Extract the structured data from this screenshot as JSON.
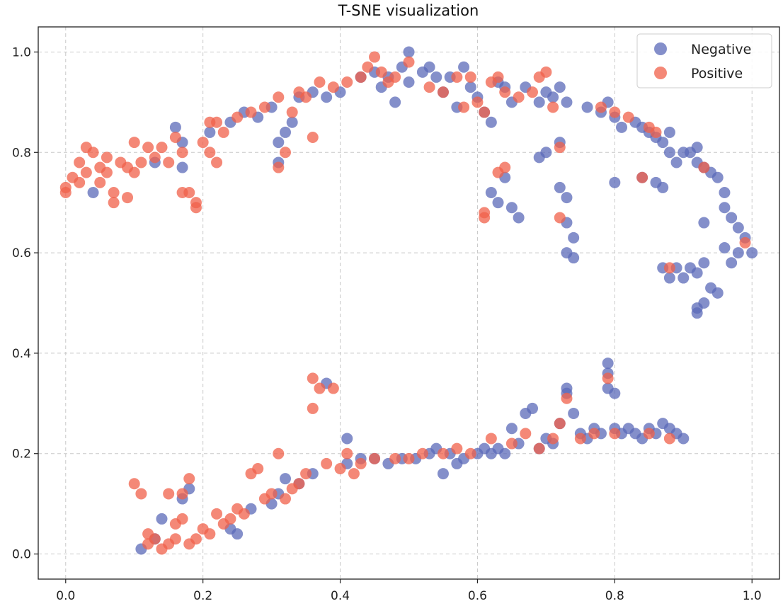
{
  "chart_data": {
    "type": "scatter",
    "title": "T-SNE visualization",
    "xlabel": "",
    "ylabel": "",
    "xlim": [
      -0.04,
      1.04
    ],
    "ylim": [
      -0.05,
      1.05
    ],
    "grid": true,
    "legend_position": "top-right",
    "xticks": [
      0.0,
      0.2,
      0.4,
      0.6,
      0.8,
      1.0
    ],
    "yticks": [
      0.0,
      0.2,
      0.4,
      0.6,
      0.8,
      1.0
    ],
    "xtick_labels": [
      "0.0",
      "0.2",
      "0.4",
      "0.6",
      "0.8",
      "1.0"
    ],
    "ytick_labels": [
      "0.0",
      "0.2",
      "0.4",
      "0.6",
      "0.8",
      "1.0"
    ],
    "series": [
      {
        "name": "Negative",
        "color": "#5b6ab8",
        "points": [
          [
            0.04,
            0.72
          ],
          [
            0.13,
            0.78
          ],
          [
            0.16,
            0.85
          ],
          [
            0.17,
            0.82
          ],
          [
            0.17,
            0.77
          ],
          [
            0.21,
            0.84
          ],
          [
            0.24,
            0.86
          ],
          [
            0.26,
            0.88
          ],
          [
            0.28,
            0.87
          ],
          [
            0.3,
            0.89
          ],
          [
            0.31,
            0.82
          ],
          [
            0.31,
            0.78
          ],
          [
            0.32,
            0.84
          ],
          [
            0.33,
            0.86
          ],
          [
            0.34,
            0.91
          ],
          [
            0.36,
            0.92
          ],
          [
            0.38,
            0.91
          ],
          [
            0.4,
            0.92
          ],
          [
            0.43,
            0.95
          ],
          [
            0.45,
            0.96
          ],
          [
            0.46,
            0.93
          ],
          [
            0.47,
            0.95
          ],
          [
            0.48,
            0.9
          ],
          [
            0.49,
            0.97
          ],
          [
            0.5,
            1.0
          ],
          [
            0.5,
            0.94
          ],
          [
            0.52,
            0.96
          ],
          [
            0.53,
            0.97
          ],
          [
            0.54,
            0.95
          ],
          [
            0.55,
            0.92
          ],
          [
            0.56,
            0.95
          ],
          [
            0.57,
            0.89
          ],
          [
            0.58,
            0.97
          ],
          [
            0.59,
            0.93
          ],
          [
            0.6,
            0.91
          ],
          [
            0.61,
            0.88
          ],
          [
            0.62,
            0.86
          ],
          [
            0.63,
            0.94
          ],
          [
            0.64,
            0.93
          ],
          [
            0.65,
            0.9
          ],
          [
            0.67,
            0.93
          ],
          [
            0.69,
            0.9
          ],
          [
            0.7,
            0.92
          ],
          [
            0.71,
            0.91
          ],
          [
            0.72,
            0.93
          ],
          [
            0.73,
            0.9
          ],
          [
            0.69,
            0.79
          ],
          [
            0.7,
            0.8
          ],
          [
            0.72,
            0.82
          ],
          [
            0.62,
            0.72
          ],
          [
            0.63,
            0.7
          ],
          [
            0.64,
            0.75
          ],
          [
            0.65,
            0.69
          ],
          [
            0.66,
            0.67
          ],
          [
            0.72,
            0.73
          ],
          [
            0.73,
            0.71
          ],
          [
            0.73,
            0.66
          ],
          [
            0.74,
            0.63
          ],
          [
            0.73,
            0.6
          ],
          [
            0.74,
            0.59
          ],
          [
            0.76,
            0.89
          ],
          [
            0.78,
            0.88
          ],
          [
            0.79,
            0.9
          ],
          [
            0.8,
            0.87
          ],
          [
            0.81,
            0.85
          ],
          [
            0.83,
            0.86
          ],
          [
            0.84,
            0.85
          ],
          [
            0.85,
            0.84
          ],
          [
            0.86,
            0.83
          ],
          [
            0.87,
            0.82
          ],
          [
            0.88,
            0.84
          ],
          [
            0.88,
            0.8
          ],
          [
            0.89,
            0.78
          ],
          [
            0.9,
            0.8
          ],
          [
            0.91,
            0.8
          ],
          [
            0.92,
            0.81
          ],
          [
            0.92,
            0.78
          ],
          [
            0.93,
            0.77
          ],
          [
            0.94,
            0.76
          ],
          [
            0.95,
            0.75
          ],
          [
            0.96,
            0.72
          ],
          [
            0.96,
            0.69
          ],
          [
            0.97,
            0.67
          ],
          [
            0.98,
            0.65
          ],
          [
            0.99,
            0.63
          ],
          [
            1.0,
            0.6
          ],
          [
            0.98,
            0.6
          ],
          [
            0.97,
            0.58
          ],
          [
            0.96,
            0.61
          ],
          [
            0.93,
            0.66
          ],
          [
            0.84,
            0.75
          ],
          [
            0.86,
            0.74
          ],
          [
            0.87,
            0.73
          ],
          [
            0.8,
            0.74
          ],
          [
            0.87,
            0.57
          ],
          [
            0.88,
            0.55
          ],
          [
            0.89,
            0.57
          ],
          [
            0.9,
            0.55
          ],
          [
            0.91,
            0.57
          ],
          [
            0.92,
            0.56
          ],
          [
            0.93,
            0.58
          ],
          [
            0.94,
            0.53
          ],
          [
            0.95,
            0.52
          ],
          [
            0.92,
            0.49
          ],
          [
            0.93,
            0.5
          ],
          [
            0.92,
            0.48
          ],
          [
            0.11,
            0.01
          ],
          [
            0.13,
            0.03
          ],
          [
            0.14,
            0.07
          ],
          [
            0.17,
            0.11
          ],
          [
            0.18,
            0.13
          ],
          [
            0.24,
            0.05
          ],
          [
            0.25,
            0.04
          ],
          [
            0.27,
            0.09
          ],
          [
            0.3,
            0.1
          ],
          [
            0.31,
            0.12
          ],
          [
            0.32,
            0.15
          ],
          [
            0.34,
            0.14
          ],
          [
            0.36,
            0.16
          ],
          [
            0.38,
            0.34
          ],
          [
            0.41,
            0.18
          ],
          [
            0.41,
            0.23
          ],
          [
            0.43,
            0.19
          ],
          [
            0.45,
            0.19
          ],
          [
            0.47,
            0.18
          ],
          [
            0.49,
            0.19
          ],
          [
            0.51,
            0.19
          ],
          [
            0.53,
            0.2
          ],
          [
            0.54,
            0.21
          ],
          [
            0.55,
            0.16
          ],
          [
            0.56,
            0.2
          ],
          [
            0.57,
            0.18
          ],
          [
            0.58,
            0.19
          ],
          [
            0.6,
            0.2
          ],
          [
            0.61,
            0.21
          ],
          [
            0.62,
            0.2
          ],
          [
            0.63,
            0.21
          ],
          [
            0.64,
            0.2
          ],
          [
            0.65,
            0.25
          ],
          [
            0.66,
            0.22
          ],
          [
            0.67,
            0.28
          ],
          [
            0.68,
            0.29
          ],
          [
            0.69,
            0.21
          ],
          [
            0.7,
            0.23
          ],
          [
            0.71,
            0.22
          ],
          [
            0.72,
            0.26
          ],
          [
            0.73,
            0.33
          ],
          [
            0.73,
            0.32
          ],
          [
            0.74,
            0.28
          ],
          [
            0.75,
            0.24
          ],
          [
            0.76,
            0.23
          ],
          [
            0.77,
            0.25
          ],
          [
            0.78,
            0.24
          ],
          [
            0.79,
            0.38
          ],
          [
            0.79,
            0.36
          ],
          [
            0.79,
            0.33
          ],
          [
            0.8,
            0.32
          ],
          [
            0.8,
            0.25
          ],
          [
            0.81,
            0.24
          ],
          [
            0.82,
            0.25
          ],
          [
            0.83,
            0.24
          ],
          [
            0.84,
            0.23
          ],
          [
            0.85,
            0.25
          ],
          [
            0.86,
            0.24
          ],
          [
            0.87,
            0.26
          ],
          [
            0.88,
            0.25
          ],
          [
            0.89,
            0.24
          ],
          [
            0.9,
            0.23
          ]
        ]
      },
      {
        "name": "Positive",
        "color": "#f0604a",
        "points": [
          [
            0.0,
            0.73
          ],
          [
            0.0,
            0.72
          ],
          [
            0.01,
            0.75
          ],
          [
            0.02,
            0.78
          ],
          [
            0.02,
            0.74
          ],
          [
            0.03,
            0.76
          ],
          [
            0.03,
            0.81
          ],
          [
            0.04,
            0.8
          ],
          [
            0.05,
            0.77
          ],
          [
            0.05,
            0.74
          ],
          [
            0.06,
            0.76
          ],
          [
            0.06,
            0.79
          ],
          [
            0.07,
            0.72
          ],
          [
            0.07,
            0.7
          ],
          [
            0.08,
            0.78
          ],
          [
            0.09,
            0.77
          ],
          [
            0.09,
            0.71
          ],
          [
            0.1,
            0.76
          ],
          [
            0.1,
            0.82
          ],
          [
            0.11,
            0.78
          ],
          [
            0.12,
            0.81
          ],
          [
            0.13,
            0.79
          ],
          [
            0.14,
            0.81
          ],
          [
            0.15,
            0.78
          ],
          [
            0.16,
            0.83
          ],
          [
            0.17,
            0.8
          ],
          [
            0.17,
            0.72
          ],
          [
            0.18,
            0.72
          ],
          [
            0.19,
            0.69
          ],
          [
            0.19,
            0.7
          ],
          [
            0.2,
            0.82
          ],
          [
            0.21,
            0.8
          ],
          [
            0.21,
            0.86
          ],
          [
            0.22,
            0.86
          ],
          [
            0.22,
            0.78
          ],
          [
            0.23,
            0.84
          ],
          [
            0.25,
            0.87
          ],
          [
            0.27,
            0.88
          ],
          [
            0.29,
            0.89
          ],
          [
            0.31,
            0.91
          ],
          [
            0.32,
            0.8
          ],
          [
            0.31,
            0.77
          ],
          [
            0.33,
            0.88
          ],
          [
            0.34,
            0.92
          ],
          [
            0.35,
            0.91
          ],
          [
            0.36,
            0.83
          ],
          [
            0.37,
            0.94
          ],
          [
            0.39,
            0.93
          ],
          [
            0.41,
            0.94
          ],
          [
            0.43,
            0.95
          ],
          [
            0.44,
            0.97
          ],
          [
            0.45,
            0.99
          ],
          [
            0.46,
            0.96
          ],
          [
            0.47,
            0.94
          ],
          [
            0.48,
            0.95
          ],
          [
            0.5,
            0.98
          ],
          [
            0.53,
            0.93
          ],
          [
            0.55,
            0.92
          ],
          [
            0.57,
            0.95
          ],
          [
            0.58,
            0.89
          ],
          [
            0.59,
            0.95
          ],
          [
            0.6,
            0.9
          ],
          [
            0.61,
            0.88
          ],
          [
            0.62,
            0.94
          ],
          [
            0.63,
            0.95
          ],
          [
            0.64,
            0.92
          ],
          [
            0.66,
            0.91
          ],
          [
            0.68,
            0.92
          ],
          [
            0.7,
            0.96
          ],
          [
            0.71,
            0.89
          ],
          [
            0.69,
            0.95
          ],
          [
            0.72,
            0.81
          ],
          [
            0.63,
            0.76
          ],
          [
            0.64,
            0.77
          ],
          [
            0.61,
            0.68
          ],
          [
            0.61,
            0.67
          ],
          [
            0.72,
            0.67
          ],
          [
            0.78,
            0.89
          ],
          [
            0.8,
            0.88
          ],
          [
            0.82,
            0.87
          ],
          [
            0.85,
            0.85
          ],
          [
            0.86,
            0.84
          ],
          [
            0.84,
            0.75
          ],
          [
            0.93,
            0.77
          ],
          [
            0.99,
            0.62
          ],
          [
            0.88,
            0.57
          ],
          [
            0.1,
            0.14
          ],
          [
            0.11,
            0.12
          ],
          [
            0.12,
            0.02
          ],
          [
            0.12,
            0.04
          ],
          [
            0.13,
            0.03
          ],
          [
            0.14,
            0.01
          ],
          [
            0.15,
            0.02
          ],
          [
            0.16,
            0.03
          ],
          [
            0.15,
            0.12
          ],
          [
            0.16,
            0.06
          ],
          [
            0.17,
            0.07
          ],
          [
            0.17,
            0.12
          ],
          [
            0.18,
            0.02
          ],
          [
            0.18,
            0.15
          ],
          [
            0.19,
            0.03
          ],
          [
            0.2,
            0.05
          ],
          [
            0.21,
            0.04
          ],
          [
            0.22,
            0.08
          ],
          [
            0.23,
            0.06
          ],
          [
            0.24,
            0.07
          ],
          [
            0.25,
            0.09
          ],
          [
            0.26,
            0.08
          ],
          [
            0.27,
            0.16
          ],
          [
            0.28,
            0.17
          ],
          [
            0.29,
            0.11
          ],
          [
            0.3,
            0.12
          ],
          [
            0.31,
            0.2
          ],
          [
            0.32,
            0.11
          ],
          [
            0.33,
            0.13
          ],
          [
            0.34,
            0.14
          ],
          [
            0.35,
            0.16
          ],
          [
            0.36,
            0.29
          ],
          [
            0.36,
            0.35
          ],
          [
            0.37,
            0.33
          ],
          [
            0.38,
            0.18
          ],
          [
            0.39,
            0.33
          ],
          [
            0.4,
            0.17
          ],
          [
            0.41,
            0.2
          ],
          [
            0.42,
            0.16
          ],
          [
            0.43,
            0.18
          ],
          [
            0.45,
            0.19
          ],
          [
            0.48,
            0.19
          ],
          [
            0.5,
            0.19
          ],
          [
            0.52,
            0.2
          ],
          [
            0.55,
            0.2
          ],
          [
            0.57,
            0.21
          ],
          [
            0.59,
            0.2
          ],
          [
            0.62,
            0.23
          ],
          [
            0.65,
            0.22
          ],
          [
            0.67,
            0.24
          ],
          [
            0.69,
            0.21
          ],
          [
            0.71,
            0.23
          ],
          [
            0.72,
            0.26
          ],
          [
            0.73,
            0.31
          ],
          [
            0.75,
            0.23
          ],
          [
            0.77,
            0.24
          ],
          [
            0.79,
            0.35
          ],
          [
            0.8,
            0.24
          ],
          [
            0.85,
            0.24
          ],
          [
            0.88,
            0.23
          ]
        ]
      }
    ]
  }
}
